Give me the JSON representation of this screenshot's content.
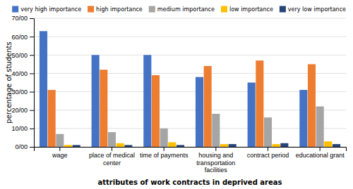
{
  "chart_data": {
    "type": "bar",
    "categories": [
      "wage",
      "place of medical\ncenter",
      "time of payments",
      "housing and\ntransportation\nfacilities",
      "contract period",
      "educational grant"
    ],
    "series": [
      {
        "name": "very high importance",
        "color": "#4472C4",
        "values": [
          63,
          50,
          50,
          38,
          35,
          31
        ]
      },
      {
        "name": "high importance",
        "color": "#ED7D31",
        "values": [
          31,
          42,
          39,
          44,
          47,
          45
        ]
      },
      {
        "name": "medium importance",
        "color": "#A5A5A5",
        "values": [
          7,
          8,
          10,
          18,
          16,
          22
        ]
      },
      {
        "name": "low importance",
        "color": "#FFC000",
        "values": [
          1,
          2,
          2.5,
          1.5,
          1.5,
          3
        ]
      },
      {
        "name": "very low importance",
        "color": "#264478",
        "values": [
          1,
          1,
          1,
          1.5,
          2,
          1.5
        ]
      }
    ],
    "ylim": [
      0,
      70
    ],
    "yticks": [
      {
        "value": 0,
        "label": "0/00"
      },
      {
        "value": 10,
        "label": "10/00"
      },
      {
        "value": 20,
        "label": "20/00"
      },
      {
        "value": 30,
        "label": "30/00"
      },
      {
        "value": 40,
        "label": "40/00"
      },
      {
        "value": 50,
        "label": "50/00"
      },
      {
        "value": 60,
        "label": "60/00"
      },
      {
        "value": 70,
        "label": "70/00"
      }
    ],
    "ylabel": "percentage of students",
    "xlabel": "attributes of work contracts in deprived areas",
    "grid": true,
    "legend": "upper right"
  }
}
